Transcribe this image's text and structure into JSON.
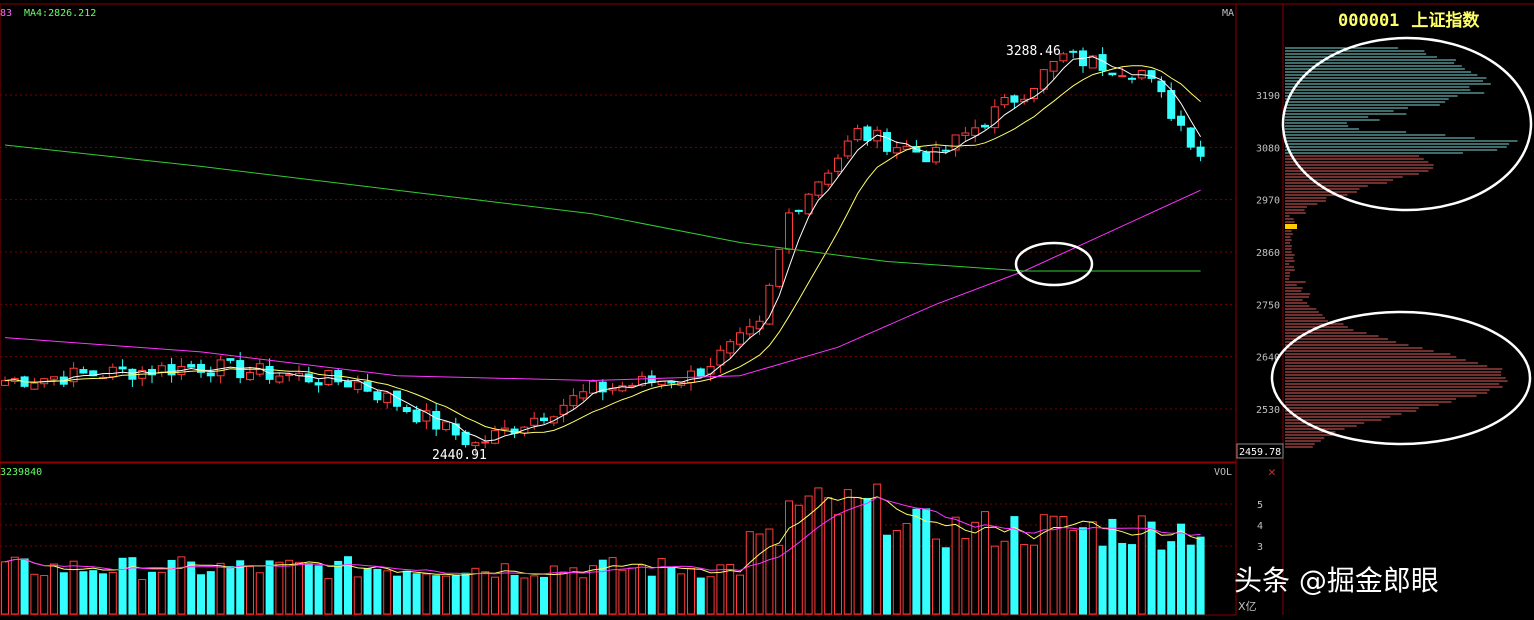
{
  "header": {
    "code": "000001",
    "name": "上证指数",
    "ma_prefix": "83",
    "ma4_label": "MA4:2826.212",
    "ma_tag": "MA"
  },
  "chart_data": {
    "type": "candlestick",
    "ylim": [
      2440,
      3300
    ],
    "y_ticks": [
      "3190",
      "3080",
      "2970",
      "2860",
      "2750",
      "2640",
      "2530"
    ],
    "y_tick_values": [
      3190,
      3080,
      2970,
      2860,
      2750,
      2640,
      2530
    ],
    "current_price": "2459.78",
    "annotations": {
      "high": "3288.46",
      "low": "2440.91"
    },
    "key_points": [
      {
        "index": 0,
        "close": 2590
      },
      {
        "index": 20,
        "close": 2620
      },
      {
        "index": 36,
        "close": 2585
      },
      {
        "index": 48,
        "close": 2455
      },
      {
        "index": 60,
        "close": 2570
      },
      {
        "index": 70,
        "close": 2600
      },
      {
        "index": 77,
        "close": 2700
      },
      {
        "index": 80,
        "close": 2940
      },
      {
        "index": 87,
        "close": 3110
      },
      {
        "index": 95,
        "close": 3060
      },
      {
        "index": 104,
        "close": 3200
      },
      {
        "index": 108,
        "close": 3270
      },
      {
        "index": 116,
        "close": 3240
      },
      {
        "index": 122,
        "close": 3070
      }
    ],
    "series": [
      {
        "name": "MA4",
        "color": "#ffffff"
      },
      {
        "name": "",
        "color": "#ffff66"
      },
      {
        "name": "",
        "color": "#ff33ff"
      },
      {
        "name": "",
        "color": "#33cc33"
      }
    ],
    "volume": {
      "label": "VOL",
      "value_label": "3239840",
      "y_ticks": [
        "5",
        "4",
        "3"
      ],
      "y_tick_values": [
        5,
        4,
        3
      ],
      "unit": "X亿",
      "ylim": [
        0,
        6.5
      ]
    },
    "profile": {
      "upper_color": "#7fd6d6",
      "lower_color": "#e06060",
      "marker_color": "#ffcc00"
    }
  },
  "watermark": "头条 @掘金郎眼"
}
